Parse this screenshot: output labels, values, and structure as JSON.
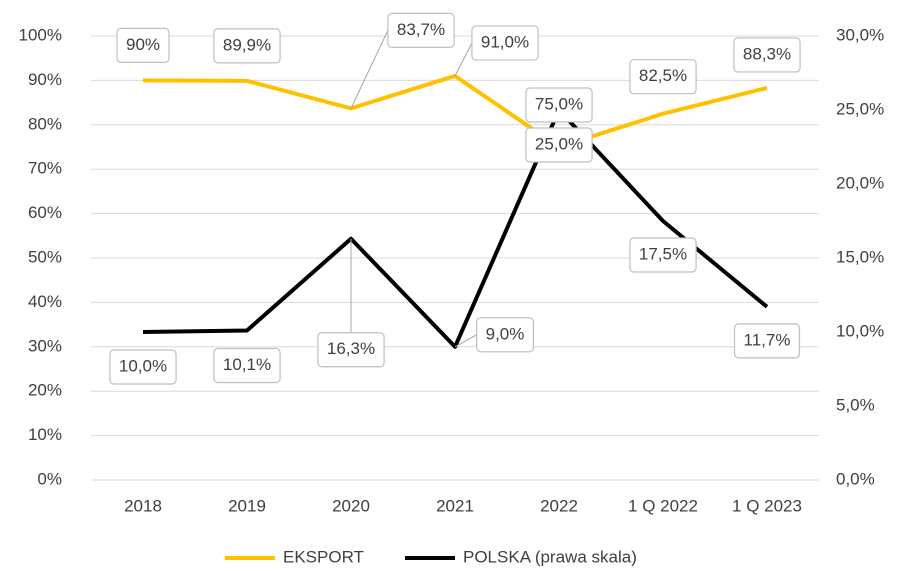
{
  "chart_data": {
    "type": "line",
    "categories": [
      "2018",
      "2019",
      "2020",
      "2021",
      "2022",
      "1 Q 2022",
      "1 Q 2023"
    ],
    "series": [
      {
        "name": "EKSPORT",
        "color": "#ffc000",
        "values": [
          90,
          89.9,
          83.7,
          91.0,
          75.0,
          82.5,
          88.3
        ],
        "value_labels": [
          "90%",
          "89,9%",
          "83,7%",
          "91,0%",
          "75,0%",
          "82,5%",
          "88,3%"
        ]
      },
      {
        "name": "POLSKA (prawa skala)",
        "color": "#000000",
        "axis": "y2",
        "values": [
          10.0,
          10.1,
          16.3,
          9.0,
          25.0,
          17.5,
          11.7
        ],
        "value_labels": [
          "10,0%",
          "10,1%",
          "16,3%",
          "9,0%",
          "25,0%",
          "17,5%",
          "11,7%"
        ]
      }
    ],
    "ylim": [
      0,
      100
    ],
    "yticks": [
      {
        "value": 0,
        "label": "0%"
      },
      {
        "value": 10,
        "label": "10%"
      },
      {
        "value": 20,
        "label": "20%"
      },
      {
        "value": 30,
        "label": "30%"
      },
      {
        "value": 40,
        "label": "40%"
      },
      {
        "value": 50,
        "label": "50%"
      },
      {
        "value": 60,
        "label": "60%"
      },
      {
        "value": 70,
        "label": "70%"
      },
      {
        "value": 80,
        "label": "80%"
      },
      {
        "value": 90,
        "label": "90%"
      },
      {
        "value": 100,
        "label": "100%"
      }
    ],
    "y2lim": [
      0,
      30
    ],
    "y2ticks": [
      {
        "value": 0,
        "label": "0,0%"
      },
      {
        "value": 5,
        "label": "5,0%"
      },
      {
        "value": 10,
        "label": "10,0%"
      },
      {
        "value": 15,
        "label": "15,0%"
      },
      {
        "value": 20,
        "label": "20,0%"
      },
      {
        "value": 25,
        "label": "25,0%"
      },
      {
        "value": 30,
        "label": "30,0%"
      }
    ],
    "grid": true,
    "legend": "bottom"
  }
}
